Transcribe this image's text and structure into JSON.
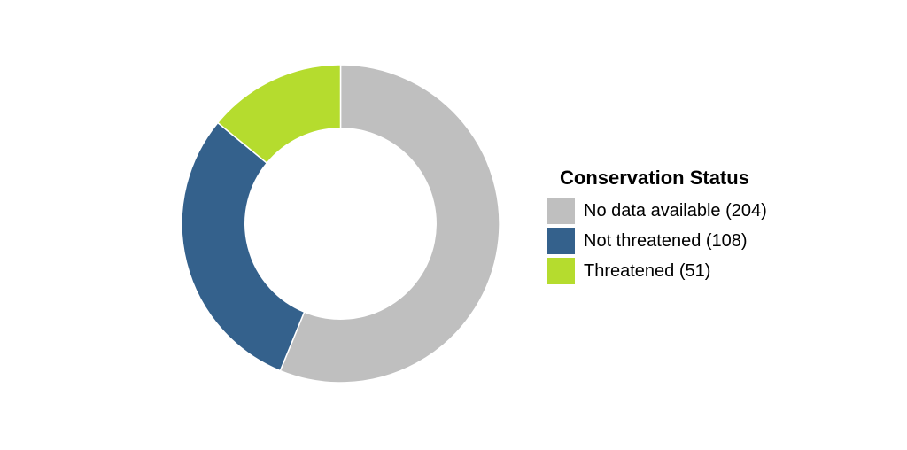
{
  "chart_data": {
    "type": "pie",
    "subtype": "donut",
    "categories": [
      "No data available",
      "Not threatened",
      "Threatened"
    ],
    "values": [
      204,
      108,
      51
    ],
    "total": 363,
    "colors": [
      "#BFBFBF",
      "#34618C",
      "#B5DC2E"
    ],
    "start_angle_deg": 0,
    "direction": "clockwise",
    "inner_radius_ratio": 0.6,
    "separator_color": "#FFFFFF",
    "background_color": "#FFFFFF",
    "legend": {
      "position": "right",
      "title": "Conservation Status",
      "items": [
        {
          "label": "No data available (204)",
          "color": "#BFBFBF"
        },
        {
          "label": "Not threatened (108)",
          "color": "#34618C"
        },
        {
          "label": "Threatened (51)",
          "color": "#B5DC2E"
        }
      ]
    }
  }
}
